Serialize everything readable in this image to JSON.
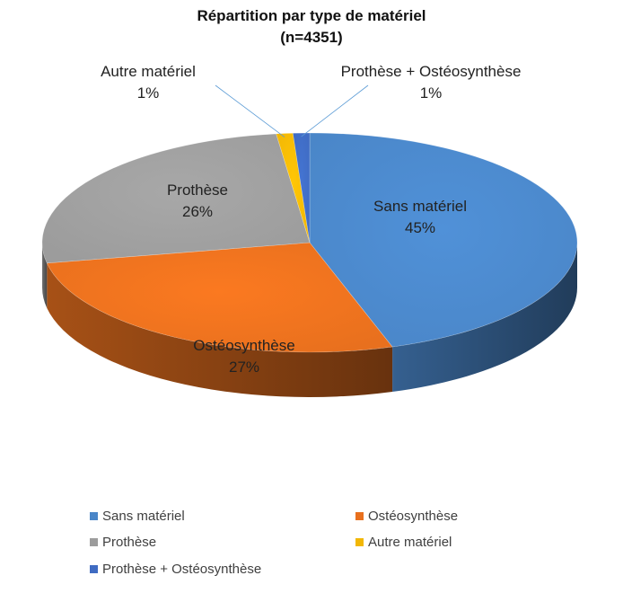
{
  "chart_data": {
    "type": "pie",
    "title": "Répartition par type de matériel",
    "subtitle": "(n=4351)",
    "categories": [
      "Sans matériel",
      "Ostéosynthèse",
      "Prothèse",
      "Autre matériel",
      "Prothèse + Ostéosynthèse"
    ],
    "values": [
      45,
      27,
      26,
      1,
      1
    ],
    "data_labels": [
      "45%",
      "27%",
      "26%",
      "1%",
      "1%"
    ],
    "colors": [
      "#4A86C8",
      "#E8701E",
      "#9C9C9C",
      "#F2B705",
      "#3F6BC2"
    ],
    "legend_position": "bottom",
    "style": "3d"
  },
  "legend": {
    "items": [
      {
        "label": "Sans matériel",
        "color": "#4A86C8"
      },
      {
        "label": "Ostéosynthèse",
        "color": "#E8701E"
      },
      {
        "label": "Prothèse",
        "color": "#9C9C9C"
      },
      {
        "label": "Autre matériel",
        "color": "#F2B705"
      },
      {
        "label": "Prothèse + Ostéosynthèse",
        "color": "#3F6BC2"
      }
    ]
  }
}
